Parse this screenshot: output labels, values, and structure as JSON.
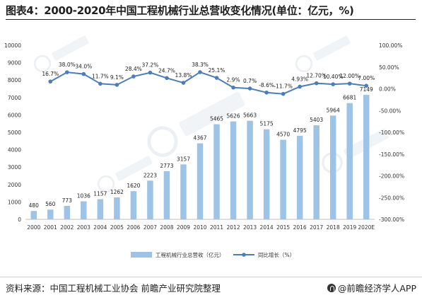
{
  "title": "图表4：2000-2020年中国工程机械行业总营收变化情况(单位：亿元，%)",
  "source": "资料来源：中国工程机械工业协会 前瞻产业研究院整理",
  "brand": "@前瞻经济学人APP",
  "watermark_icon": "qianzhan-logo-icon",
  "colors": {
    "bar": "#9dc3e6",
    "line": "#4a7ebb",
    "axis": "#bfbfbf",
    "text": "#333333"
  },
  "chart_data": {
    "type": "bar",
    "categories": [
      "2000",
      "2001",
      "2002",
      "2003",
      "2004",
      "2005",
      "2006",
      "2007",
      "2008",
      "2009",
      "2010",
      "2011",
      "2012",
      "2013",
      "2014",
      "2015",
      "2016",
      "2017",
      "2018",
      "2019",
      "2020E"
    ],
    "series": [
      {
        "name": "工程机械行业总营收（亿元）",
        "type": "bar",
        "axis": "left",
        "values": [
          480,
          560,
          773,
          1036,
          1157,
          1262,
          1620,
          2223,
          2773,
          3157,
          4367,
          5465,
          5626,
          5663,
          5175,
          4570,
          4795,
          5403,
          5964,
          6681,
          7149
        ]
      },
      {
        "name": "同比增长（%）",
        "type": "line",
        "axis": "right",
        "values": [
          null,
          16.7,
          38.0,
          34.0,
          11.7,
          9.1,
          28.4,
          37.2,
          24.7,
          13.8,
          38.3,
          25.1,
          2.9,
          0.7,
          -8.6,
          -11.7,
          4.93,
          12.7,
          10.4,
          12.0,
          7.0
        ]
      }
    ],
    "bar_labels": [
      "480",
      "560",
      "773",
      "1036",
      "1157",
      "1262",
      "1620",
      "2223",
      "2773",
      "3157",
      "4367",
      "5465",
      "5626",
      "5663",
      "5175",
      "4570",
      "4795",
      "5403",
      "5964",
      "6681",
      "7149"
    ],
    "line_labels": [
      "",
      "16.7%",
      "38.0%",
      "34.0%",
      "11.7%",
      "9.1%",
      "28.4%",
      "37.2%",
      "24.7%",
      "13.8%",
      "38.3%",
      "25.1%",
      "2.9%",
      "0.7%",
      "-8.6%",
      "-11.7%",
      "4.93%",
      "12.70%",
      "10.40%",
      "12.00%",
      "7.00%"
    ],
    "left_axis": {
      "min": 0,
      "max": 10000,
      "step": 1000,
      "ticks": [
        "0",
        "1000",
        "2000",
        "3000",
        "4000",
        "5000",
        "6000",
        "7000",
        "8000",
        "9000",
        "10000"
      ]
    },
    "right_axis": {
      "min": -300,
      "max": 100,
      "step": 50,
      "ticks": [
        "-300.00%",
        "-250.00%",
        "-200.00%",
        "-150.00%",
        "-100.00%",
        "-50.00%",
        "0.00%",
        "50.00%",
        "100.00%"
      ]
    },
    "legend": [
      "工程机械行业总营收（亿元）",
      "同比增长（%）"
    ],
    "legend_position": "bottom",
    "grid": false
  }
}
